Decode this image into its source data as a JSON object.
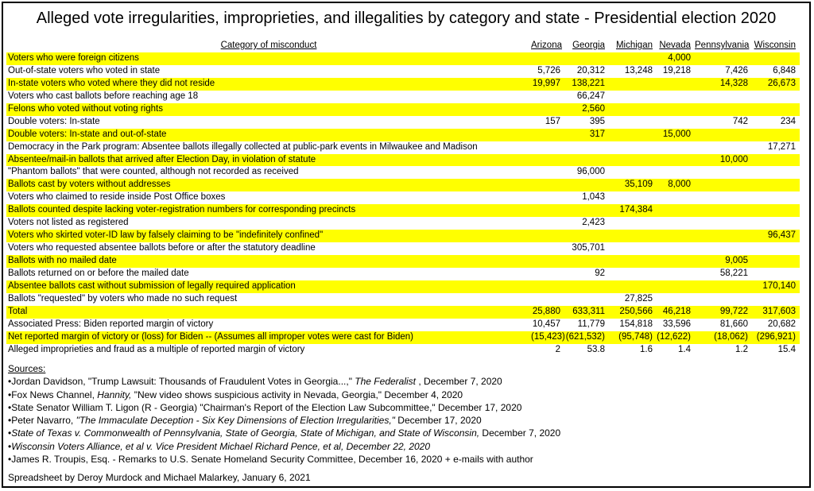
{
  "page": {
    "title": "Alleged vote irregularities, improprieties, and illegalities by category and state - Presidential election 2020",
    "footer": "Spreadsheet by Deroy Murdock and Michael Malarkey, January 6, 2021"
  },
  "table": {
    "category_header": "Category of misconduct",
    "state_columns": [
      "Arizona",
      "Georgia",
      "Michigan",
      "Nevada",
      "Pennsylvania",
      "Wisconsin"
    ],
    "highlight_color": "#FFFF00",
    "text_color": "#000000",
    "rows": [
      {
        "label": "Voters who were foreign citizens",
        "highlight": true,
        "values": [
          "",
          "",
          "",
          "4,000",
          "",
          ""
        ]
      },
      {
        "label": "Out-of-state voters who voted in state",
        "highlight": false,
        "values": [
          "5,726",
          "20,312",
          "13,248",
          "19,218",
          "7,426",
          "6,848"
        ]
      },
      {
        "label": "In-state voters who voted where they did not reside",
        "highlight": true,
        "values": [
          "19,997",
          "138,221",
          "",
          "",
          "14,328",
          "26,673"
        ]
      },
      {
        "label": "Voters who cast ballots before reaching age 18",
        "highlight": false,
        "values": [
          "",
          "66,247",
          "",
          "",
          "",
          ""
        ]
      },
      {
        "label": "Felons who voted without voting rights",
        "highlight": true,
        "values": [
          "",
          "2,560",
          "",
          "",
          "",
          ""
        ]
      },
      {
        "label": "Double voters: In-state",
        "highlight": false,
        "values": [
          "157",
          "395",
          "",
          "",
          "742",
          "234"
        ]
      },
      {
        "label": "Double voters: In-state and out-of-state",
        "highlight": true,
        "values": [
          "",
          "317",
          "",
          "15,000",
          "",
          ""
        ]
      },
      {
        "label": "Democracy in the Park program: Absentee ballots illegally collected at public-park events in Milwaukee and Madison",
        "highlight": false,
        "values": [
          "",
          "",
          "",
          "",
          "",
          "17,271"
        ]
      },
      {
        "label": "Absentee/mail-in ballots that arrived after Election Day, in violation of statute",
        "highlight": true,
        "values": [
          "",
          "",
          "",
          "",
          "10,000",
          ""
        ]
      },
      {
        "label": "\"Phantom ballots\" that were counted, although not recorded as received",
        "highlight": false,
        "values": [
          "",
          "96,000",
          "",
          "",
          "",
          ""
        ]
      },
      {
        "label": "Ballots cast by voters without addresses",
        "highlight": true,
        "values": [
          "",
          "",
          "35,109",
          "8,000",
          "",
          ""
        ]
      },
      {
        "label": "Voters who claimed to reside inside Post Office boxes",
        "highlight": false,
        "values": [
          "",
          "1,043",
          "",
          "",
          "",
          ""
        ]
      },
      {
        "label": "Ballots counted despite lacking voter-registration numbers for corresponding precincts",
        "highlight": true,
        "values": [
          "",
          "",
          "174,384",
          "",
          "",
          ""
        ]
      },
      {
        "label": "Voters not listed as registered",
        "highlight": false,
        "values": [
          "",
          "2,423",
          "",
          "",
          "",
          ""
        ]
      },
      {
        "label": "Voters who skirted voter-ID law by falsely claiming to be \"indefinitely confined\"",
        "highlight": true,
        "values": [
          "",
          "",
          "",
          "",
          "",
          "96,437"
        ]
      },
      {
        "label": "Voters who requested absentee ballots before or after the statutory deadline",
        "highlight": false,
        "values": [
          "",
          "305,701",
          "",
          "",
          "",
          ""
        ]
      },
      {
        "label": "Ballots with no mailed date",
        "highlight": true,
        "values": [
          "",
          "",
          "",
          "",
          "9,005",
          ""
        ]
      },
      {
        "label": "Ballots returned on or before the mailed date",
        "highlight": false,
        "values": [
          "",
          "92",
          "",
          "",
          "58,221",
          ""
        ]
      },
      {
        "label": "Absentee ballots cast without submission of legally required application",
        "highlight": true,
        "values": [
          "",
          "",
          "",
          "",
          "",
          "170,140"
        ]
      },
      {
        "label": "Ballots \"requested\" by voters who made no such request",
        "highlight": false,
        "values": [
          "",
          "",
          "27,825",
          "",
          "",
          ""
        ]
      },
      {
        "label": "Total",
        "highlight": true,
        "values": [
          "25,880",
          "633,311",
          "250,566",
          "46,218",
          "99,722",
          "317,603"
        ]
      },
      {
        "label": "Associated Press: Biden reported margin of victory",
        "highlight": false,
        "values": [
          "10,457",
          "11,779",
          "154,818",
          "33,596",
          "81,660",
          "20,682"
        ]
      },
      {
        "label": "Net reported margin of victory or (loss) for Biden -- (Assumes all improper votes were cast for Biden)",
        "highlight": true,
        "values": [
          "(15,423)",
          "(621,532)",
          "(95,748)",
          "(12,622)",
          "(18,062)",
          "(296,921)"
        ]
      },
      {
        "label": "Alleged improprieties and fraud as a multiple of reported margin of victory",
        "highlight": false,
        "values": [
          "2",
          "53.8",
          "1.6",
          "1.4",
          "1.2",
          "15.4"
        ]
      }
    ]
  },
  "sources": {
    "heading": "Sources:",
    "items": [
      [
        {
          "t": "•Jordan Davidson, \"Trump Lawsuit: Thousands of Fraudulent Votes in Georgia...,\" "
        },
        {
          "t": "The Federalist",
          "i": true
        },
        {
          "t": " , December 7, 2020"
        }
      ],
      [
        {
          "t": "•Fox News Channel, "
        },
        {
          "t": "Hannity,",
          "i": true
        },
        {
          "t": " \"New video shows suspicious activity in Nevada, Georgia,\" December 4, 2020"
        }
      ],
      [
        {
          "t": "•State Senator William T. Ligon (R - Georgia) \"Chairman's Report of the Election Law Subcommittee,\" December 17, 2020"
        }
      ],
      [
        {
          "t": "•Peter Navarro, "
        },
        {
          "t": "\"The Immaculate Deception - Six Key Dimensions of Election Irregularities,\"",
          "i": true
        },
        {
          "t": " December 17, 2020"
        }
      ],
      [
        {
          "t": "•"
        },
        {
          "t": "State of Texas v. Commonwealth of Pennsylvania, State of Georgia, State of Michigan, and State of Wisconsin,",
          "i": true
        },
        {
          "t": " December 7, 2020"
        }
      ],
      [
        {
          "t": "•"
        },
        {
          "t": "Wisconsin Voters Alliance, et al v. Vice President Michael Richard Pence, et al, December 22, 2020",
          "i": true
        }
      ],
      [
        {
          "t": "•James R. Troupis, Esq. - Remarks to U.S. Senate Homeland Security Committee, December 16, 2020 + e-mails with author"
        }
      ]
    ]
  }
}
